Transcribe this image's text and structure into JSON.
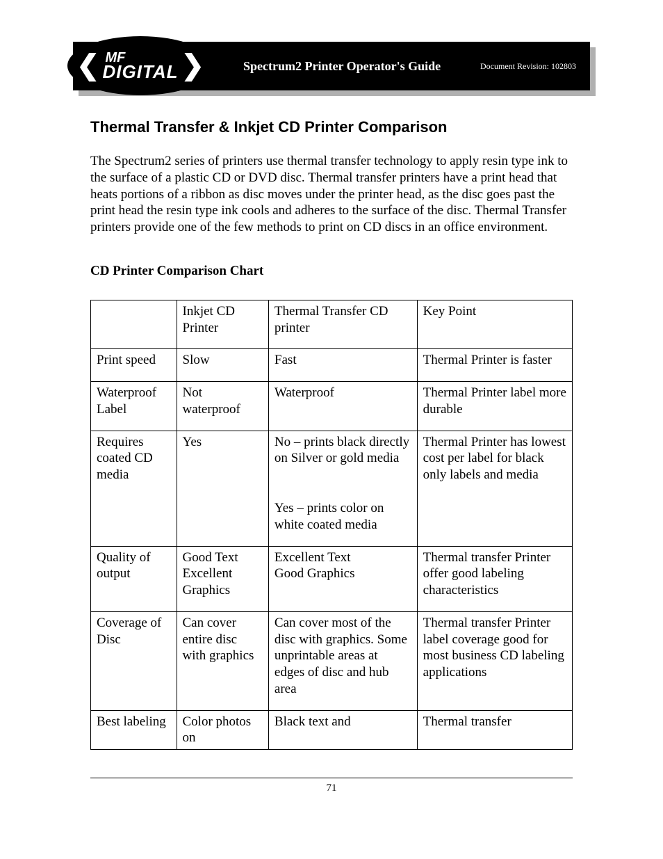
{
  "header": {
    "logo_line1": "MF",
    "logo_line2": "DIGITAL",
    "title": "Spectrum2 Printer Operator's Guide",
    "revision": "Document Revision: 102803"
  },
  "section": {
    "heading": "Thermal Transfer & Inkjet CD Printer Comparison",
    "intro": "The Spectrum2 series of printers use thermal transfer technology to apply resin type ink to the surface of a plastic CD or DVD disc.  Thermal transfer printers have a print head that heats portions of a ribbon as disc moves under the printer head, as the disc goes past the print head the resin type ink cools and adheres to the surface of the disc.  Thermal Transfer printers provide one of the few methods to print on CD discs in an office environment.",
    "chart_heading": "CD Printer Comparison Chart"
  },
  "table": {
    "columns": [
      "",
      "Inkjet CD Printer",
      "Thermal Transfer CD printer",
      "Key Point"
    ],
    "rows": [
      {
        "label": "Print speed",
        "inkjet": "Slow",
        "thermal_a": "Fast",
        "thermal_b": "",
        "key": "Thermal Printer is faster"
      },
      {
        "label": "Waterproof Label",
        "inkjet": "Not waterproof",
        "thermal_a": "Waterproof",
        "thermal_b": "",
        "key": "Thermal Printer label more durable"
      },
      {
        "label": "Requires coated CD media",
        "inkjet": "Yes",
        "thermal_a": "No – prints black directly on Silver or gold media",
        "thermal_b": "Yes – prints color on white coated media",
        "key": "Thermal Printer has lowest cost per label for black only labels and media"
      },
      {
        "label": "Quality of output",
        "inkjet": "Good Text\nExcellent Graphics",
        "thermal_a": "Excellent Text\nGood Graphics",
        "thermal_b": "",
        "key": "Thermal transfer Printer offer good labeling characteristics"
      },
      {
        "label": "Coverage of Disc",
        "inkjet": "Can cover entire disc with graphics",
        "thermal_a": "Can cover most of the disc with graphics.  Some unprintable areas at edges of disc and hub area",
        "thermal_b": "",
        "key": "Thermal transfer Printer label coverage good for most business CD labeling applications"
      },
      {
        "label": "Best labeling",
        "inkjet": "Color photos on",
        "thermal_a": "Black text and",
        "thermal_b": "",
        "key": "Thermal transfer"
      }
    ]
  },
  "footer": {
    "page": "71"
  }
}
